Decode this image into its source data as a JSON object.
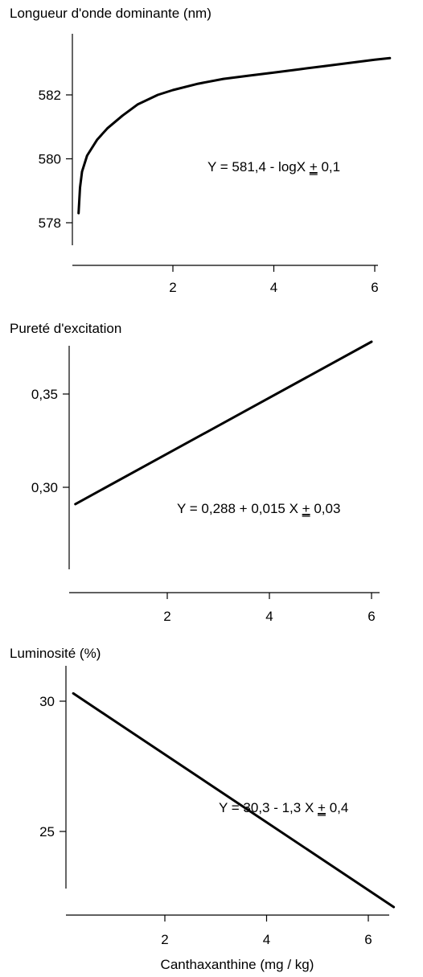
{
  "chart_data": [
    {
      "type": "line",
      "title": "Longueur d'onde dominante (nm)",
      "xlabel": "",
      "ylabel": "Longueur d'onde dominante (nm)",
      "xlim": [
        0,
        6.5
      ],
      "ylim": [
        577,
        584.5
      ],
      "x_ticks": [
        2,
        4,
        6
      ],
      "x_tick_labels": [
        "2",
        "4",
        "6"
      ],
      "y_ticks": [
        578,
        580,
        582
      ],
      "y_tick_labels": [
        "578",
        "580",
        "582"
      ],
      "grid": false,
      "series": [
        {
          "x": [
            0.13,
            0.16,
            0.2,
            0.3,
            0.5,
            0.7,
            1.0,
            1.3,
            1.7,
            2.0,
            2.5,
            3.0,
            3.5,
            4.0,
            4.5,
            5.0,
            5.5,
            6.0,
            6.3
          ],
          "values": [
            578.3,
            579.1,
            579.6,
            580.1,
            580.6,
            580.95,
            581.35,
            581.7,
            582.0,
            582.15,
            582.35,
            582.5,
            582.6,
            582.7,
            582.8,
            582.9,
            583.0,
            583.1,
            583.15
          ]
        }
      ],
      "annotations": [
        {
          "text": "Y = 581,4 - logX ",
          "pm": "+",
          "rest": " 0,1"
        }
      ]
    },
    {
      "type": "line",
      "title": "Pureté d'excitation",
      "xlabel": "",
      "ylabel": "Pureté d'excitation",
      "xlim": [
        0,
        6.5
      ],
      "ylim": [
        0.265,
        0.383
      ],
      "x_ticks": [
        2,
        4,
        6
      ],
      "x_tick_labels": [
        "2",
        "4",
        "6"
      ],
      "y_ticks": [
        0.3,
        0.35
      ],
      "y_tick_labels": [
        "0,30",
        "0,35"
      ],
      "grid": false,
      "series": [
        {
          "x": [
            0.2,
            6.0
          ],
          "values": [
            0.291,
            0.378
          ]
        }
      ],
      "annotations": [
        {
          "text": "Y = 0,288 + 0,015 X ",
          "pm": "+",
          "rest": " 0,03"
        }
      ]
    },
    {
      "type": "line",
      "title": "Luminosité (%)",
      "xlabel": "Canthaxanthine (mg / kg)",
      "ylabel": "Luminosité (%)",
      "xlim": [
        0,
        6.7
      ],
      "ylim": [
        21.5,
        31.5
      ],
      "x_ticks": [
        2,
        4,
        6
      ],
      "x_tick_labels": [
        "2",
        "4",
        "6"
      ],
      "y_ticks": [
        25,
        30
      ],
      "y_tick_labels": [
        "25",
        "30"
      ],
      "grid": false,
      "series": [
        {
          "x": [
            0.2,
            6.5
          ],
          "values": [
            30.3,
            22.1
          ]
        }
      ],
      "annotations": [
        {
          "text": "Y = 30,3 - 1,3 X ",
          "pm": "+",
          "rest": " 0,4"
        }
      ]
    }
  ]
}
